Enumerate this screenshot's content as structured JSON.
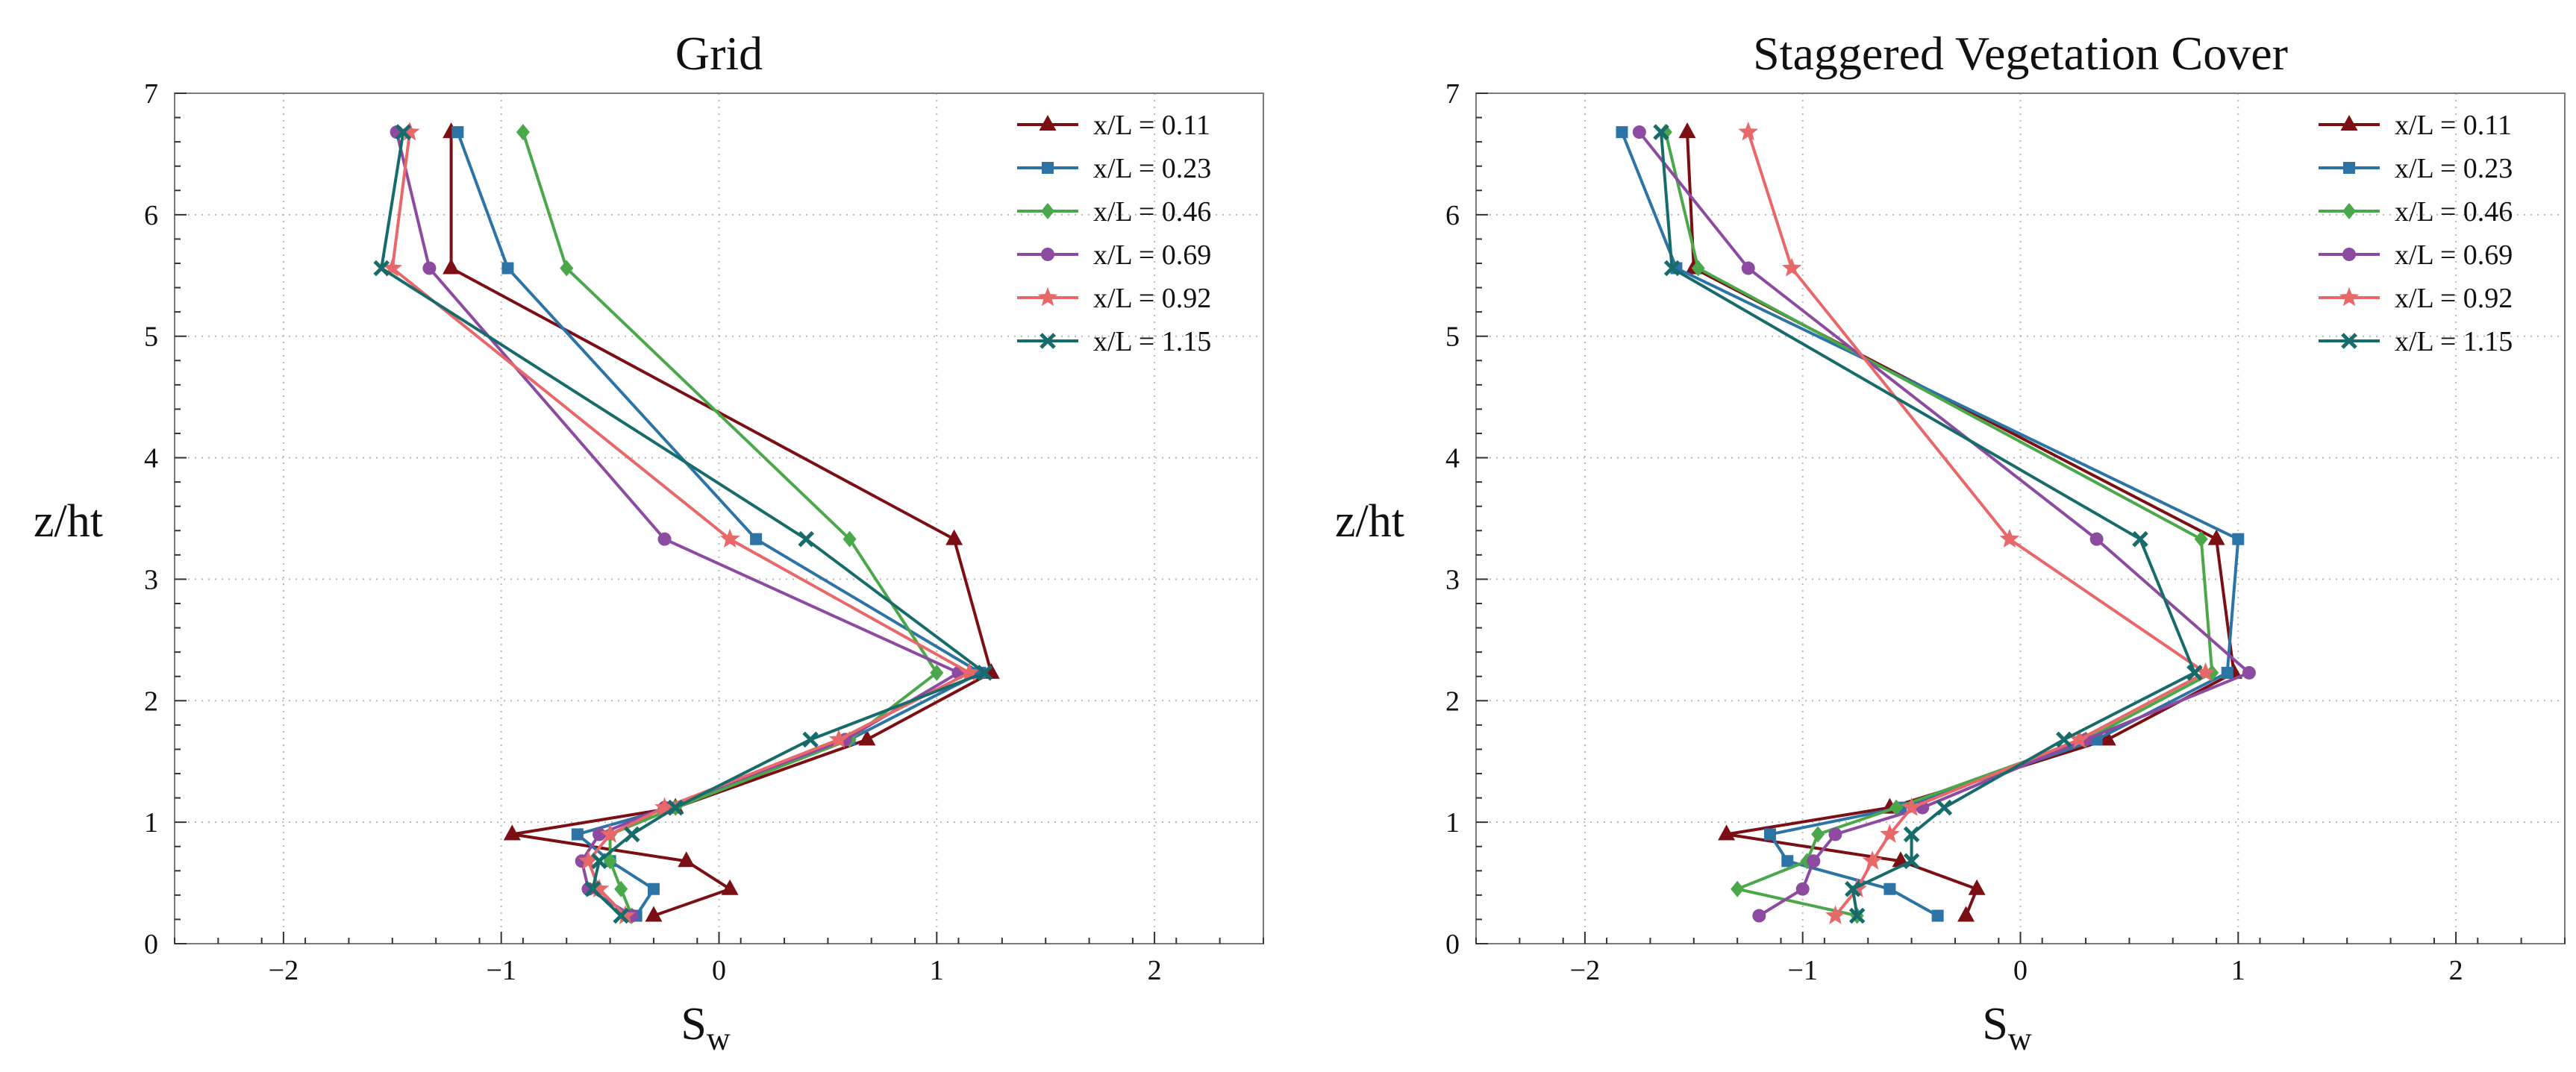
{
  "chart_data": [
    {
      "type": "line",
      "title": "Grid",
      "xlabel_main": "S",
      "xlabel_sub": "w",
      "ylabel": "z/ht",
      "xlim": [
        -2.5,
        2.5
      ],
      "ylim": [
        0,
        7
      ],
      "xticks": [
        -2,
        -1,
        0,
        1,
        2
      ],
      "xtick_labels": [
        "−2",
        "−1",
        "0",
        "1",
        "2"
      ],
      "yticks": [
        0,
        1,
        2,
        3,
        4,
        5,
        6,
        7
      ],
      "ytick_labels": [
        "0",
        "1",
        "2",
        "3",
        "4",
        "5",
        "6",
        "7"
      ],
      "grid": true,
      "legend_position": "top-right",
      "series": [
        {
          "name": "x/L = 0.11",
          "color": "#7b0f14",
          "marker": "triangle",
          "x": [
            -0.3,
            0.05,
            -0.15,
            -0.95,
            -0.2,
            0.68,
            1.25,
            1.08,
            -1.23,
            -1.23
          ],
          "y": [
            0.23,
            0.45,
            0.68,
            0.9,
            1.12,
            1.68,
            2.23,
            3.33,
            5.56,
            6.68
          ]
        },
        {
          "name": "x/L = 0.23",
          "color": "#2c73a6",
          "marker": "square",
          "x": [
            -0.38,
            -0.3,
            -0.5,
            -0.65,
            -0.22,
            0.6,
            1.2,
            0.17,
            -0.97,
            -1.2
          ],
          "y": [
            0.23,
            0.45,
            0.68,
            0.9,
            1.12,
            1.68,
            2.23,
            3.33,
            5.56,
            6.68
          ]
        },
        {
          "name": "x/L = 0.46",
          "color": "#4aa84a",
          "marker": "diamond",
          "x": [
            -0.4,
            -0.45,
            -0.5,
            -0.5,
            -0.2,
            0.6,
            1.0,
            0.6,
            -0.7,
            -0.9
          ],
          "y": [
            0.23,
            0.45,
            0.68,
            0.9,
            1.12,
            1.68,
            2.23,
            3.33,
            5.56,
            6.68
          ]
        },
        {
          "name": "x/L = 0.69",
          "color": "#8c4aa0",
          "marker": "circle",
          "x": [
            -0.4,
            -0.6,
            -0.63,
            -0.55,
            -0.25,
            0.58,
            1.1,
            -0.25,
            -1.33,
            -1.48
          ],
          "y": [
            0.23,
            0.45,
            0.68,
            0.9,
            1.12,
            1.68,
            2.23,
            3.33,
            5.56,
            6.68
          ]
        },
        {
          "name": "x/L = 0.92",
          "color": "#e8686a",
          "marker": "star",
          "x": [
            -0.43,
            -0.55,
            -0.6,
            -0.5,
            -0.25,
            0.55,
            1.15,
            0.05,
            -1.5,
            -1.42
          ],
          "y": [
            0.23,
            0.45,
            0.68,
            0.9,
            1.12,
            1.68,
            2.23,
            3.33,
            5.56,
            6.68
          ]
        },
        {
          "name": "x/L = 1.15",
          "color": "#176b6b",
          "marker": "x",
          "x": [
            -0.45,
            -0.58,
            -0.55,
            -0.4,
            -0.2,
            0.42,
            1.22,
            0.4,
            -1.55,
            -1.45
          ],
          "y": [
            0.23,
            0.45,
            0.68,
            0.9,
            1.12,
            1.68,
            2.23,
            3.33,
            5.56,
            6.68
          ]
        }
      ]
    },
    {
      "type": "line",
      "title": "Staggered Vegetation Cover",
      "xlabel_main": "S",
      "xlabel_sub": "w",
      "ylabel": "z/ht",
      "xlim": [
        -2.5,
        2.5
      ],
      "ylim": [
        0,
        7
      ],
      "xticks": [
        -2,
        -1,
        0,
        1,
        2
      ],
      "xtick_labels": [
        "−2",
        "−1",
        "0",
        "1",
        "2"
      ],
      "yticks": [
        0,
        1,
        2,
        3,
        4,
        5,
        6,
        7
      ],
      "ytick_labels": [
        "0",
        "1",
        "2",
        "3",
        "4",
        "5",
        "6",
        "7"
      ],
      "grid": true,
      "legend_position": "top-right",
      "series": [
        {
          "name": "x/L = 0.11",
          "color": "#7b0f14",
          "marker": "triangle",
          "x": [
            -0.25,
            -0.2,
            -0.55,
            -1.35,
            -0.6,
            0.4,
            0.98,
            0.9,
            -1.5,
            -1.53
          ],
          "y": [
            0.23,
            0.45,
            0.68,
            0.9,
            1.12,
            1.68,
            2.23,
            3.33,
            5.56,
            6.68
          ]
        },
        {
          "name": "x/L = 0.23",
          "color": "#2c73a6",
          "marker": "square",
          "x": [
            -0.38,
            -0.6,
            -1.07,
            -1.15,
            -0.55,
            0.35,
            0.95,
            1.0,
            -1.58,
            -1.83
          ],
          "y": [
            0.23,
            0.45,
            0.68,
            0.9,
            1.12,
            1.68,
            2.23,
            3.33,
            5.56,
            6.68
          ]
        },
        {
          "name": "x/L = 0.46",
          "color": "#4aa84a",
          "marker": "diamond",
          "x": [
            -0.75,
            -1.3,
            -0.98,
            -0.93,
            -0.57,
            0.3,
            0.88,
            0.83,
            -1.48,
            -1.63
          ],
          "y": [
            0.23,
            0.45,
            0.68,
            0.9,
            1.12,
            1.68,
            2.23,
            3.33,
            5.56,
            6.68
          ]
        },
        {
          "name": "x/L = 0.69",
          "color": "#8c4aa0",
          "marker": "circle",
          "x": [
            -1.2,
            -1.0,
            -0.95,
            -0.85,
            -0.45,
            0.3,
            1.05,
            0.35,
            -1.25,
            -1.75
          ],
          "y": [
            0.23,
            0.45,
            0.68,
            0.9,
            1.12,
            1.68,
            2.23,
            3.33,
            5.56,
            6.68
          ]
        },
        {
          "name": "x/L = 0.92",
          "color": "#e8686a",
          "marker": "star",
          "x": [
            -0.85,
            -0.75,
            -0.68,
            -0.6,
            -0.5,
            0.27,
            0.85,
            -0.05,
            -1.05,
            -1.25
          ],
          "y": [
            0.23,
            0.45,
            0.68,
            0.9,
            1.12,
            1.68,
            2.23,
            3.33,
            5.56,
            6.68
          ]
        },
        {
          "name": "x/L = 1.15",
          "color": "#176b6b",
          "marker": "x",
          "x": [
            -0.75,
            -0.77,
            -0.5,
            -0.5,
            -0.35,
            0.2,
            0.8,
            0.55,
            -1.6,
            -1.65
          ],
          "y": [
            0.23,
            0.45,
            0.68,
            0.9,
            1.12,
            1.68,
            2.23,
            3.33,
            5.56,
            6.68
          ]
        }
      ]
    }
  ]
}
